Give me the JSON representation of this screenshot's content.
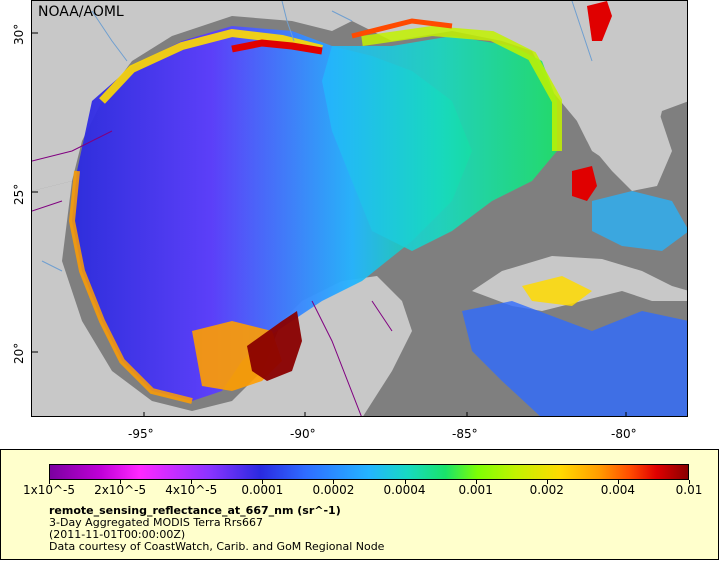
{
  "map": {
    "credit": "NOAA/AOML",
    "lon_ticks": [
      "-95°",
      "-90°",
      "-85°",
      "-80°"
    ],
    "lat_ticks": [
      "30°",
      "25°",
      "20°"
    ],
    "lon_range": [
      -98,
      -78
    ],
    "lat_range": [
      18,
      31
    ]
  },
  "legend": {
    "scale": "log",
    "ticks": [
      "1x10^-5",
      "2x10^-5",
      "4x10^-5",
      "0.0001",
      "0.0002",
      "0.0004",
      "0.001",
      "0.002",
      "0.004",
      "0.01"
    ],
    "variable": "remote_sensing_reflectance_at_667_nm (sr^-1)",
    "product": "3-Day Aggregated MODIS Terra Rrs667",
    "time": "(2011-11-01T00:00:00Z)",
    "source": "Data courtesy of CoastWatch, Carib. and GoM Regional Node"
  },
  "colors": {
    "land": "#c8c8c8",
    "no_data": "#7f7f7f",
    "borders": "#800080",
    "rivers": "#6f9fd0",
    "legend_bg": "#ffffcc"
  }
}
